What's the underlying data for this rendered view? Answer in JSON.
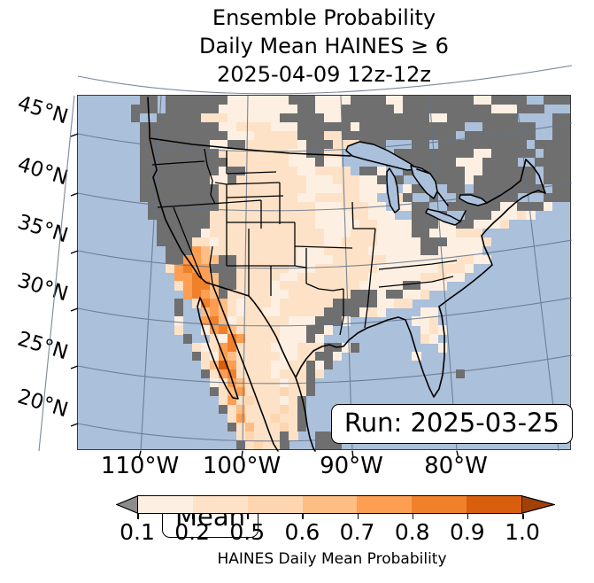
{
  "title": {
    "line1": "Ensemble Probability",
    "line2": "Daily Mean HAINES ≥ 6",
    "line3": "2025-04-09 12z-12z"
  },
  "map": {
    "mean_label": "Mean",
    "run_label": "Run: 2025-03-25",
    "lat_labels": [
      "45°N",
      "40°N",
      "35°N",
      "30°N",
      "25°N",
      "20°N"
    ],
    "lon_labels": [
      "110°W",
      "100°W",
      "90°W",
      "80°W"
    ],
    "ocean_color": "#abc0da",
    "nodata_color": "#6f6f6f",
    "border_color": "#000000"
  },
  "chart_data": {
    "type": "heatmap",
    "subtype": "geographic-probability-map",
    "title": "Ensemble Probability Daily Mean HAINES ≥ 6 2025-04-09 12z-12z",
    "annotations": [
      "Mean",
      "Run: 2025-03-25"
    ],
    "x_axis": {
      "label": "",
      "ticks": [
        "110°W",
        "100°W",
        "90°W",
        "80°W"
      ]
    },
    "y_axis": {
      "label": "",
      "ticks": [
        "45°N",
        "40°N",
        "35°N",
        "30°N",
        "25°N",
        "20°N"
      ]
    },
    "colorbar": {
      "label": "HAINES Daily Mean Probability",
      "tick_labels": [
        "0.1",
        "0.2",
        "0.5",
        "0.6",
        "0.7",
        "0.8",
        "0.9",
        "1.0"
      ],
      "segment_colors": [
        "#fdf0e2",
        "#fde2c7",
        "#fdd6af",
        "#fdbe85",
        "#fd9e53",
        "#f0802a",
        "#d85f0e"
      ],
      "under_color": "#8c8c8c",
      "over_color": "#a04108",
      "outline_color": "#000000"
    },
    "palette": {
      ".": null,
      "g": "#6f6f6f",
      "a": "#fdf0e2",
      "b": "#fde2c7",
      "c": "#fdd6af",
      "d": "#fdbe85",
      "e": "#fd9e53",
      "f": "#f0802a",
      "h": "#d85f0e"
    },
    "palette_meaning": {
      ".": "ocean / no land",
      "g": "no data / below 0.1",
      "a": "0.1-0.2",
      "b": "0.2-0.5",
      "c": "0.5-0.6",
      "d": "0.6-0.7",
      "e": "0.7-0.8",
      "f": "0.8-0.9",
      "h": "0.9-1.0"
    },
    "grid_cols": 56,
    "grid_rows": 40,
    "grid": [
      ".......gg.gggggggaaaaaaagggaaaaggggaaggggggggaagggg..ggg",
      "......ggg.ggggggaaaaaaaaaggaaaggggggaggggggggggaaaggg...g",
      "......g..gggggbbbaaaaaagggggaaggggggggggaagggggggg....gg",
      ".......gggggggggaabbbbaaaggggggagggggggggggg..gggggg..gg",
      ".......ggggggggggaaabbbbbgggbbggggggggggggg.gggggggg..gg",
      ".......ggggggggaaggbbbbbbagggbbbggg...gg.gggggggggg.gggg",
      ".......gggggggggbbbbbbbbaaggbb....g.gggggggggaaggggg.ggg",
      ".......ggggggggggbbbbbbbaaagaa.....ggggggggaaagggg..gggg",
      ".......gggggggggaggbbbbbbaabbbb.gga..gggggggaagggggg.ggg",
      ".......ggggggggaagbbbbbbbbaaabbbaag.g..gggggaggggggg.ggg",
      ".......gggggggggbbbbbbbbbbaaaabbaaa..agg..gg.gggggggg.gg",
      ".......gggggggggbbbbbbbbbaabbbbbaa..bg..g..ggggggg...ggg",
      "........ggggggggbbbbbbbbbbbaaabbbaa.aagg..ggggggaaggga..",
      "........gggggggbbbbbbbbbbbbaaaabbaaa..gggg..gggaaaba....",
      ".........ggggggbbbbbbbbbbbbaaaaabbaaaagggaaggaaab.......",
      ".........gggggabbbbbbbbbbbbbaaabbbaaaaggaaabbb..........",
      ".........ggggbbabbbbbbbbbbbbaabbbbaaaaagggaaaab.........",
      "..........gggedbbbbbbbbbbaaabbbbbaaaaaaggaaaaa..........",
      "..........ggeeddggbbbbbbbaaaabbbbbbaaaaaaaabbaa.........",
      "..........befeegggbbbbbbaaabbbbbbbaaaaaaabbba...........",
      "...........eefedggbbbbbaabbbbbbbbaaaaaabbbaa............",
      "...........beffdggbbbbabbbbbbbbbaaaaaggaaa..............",
      "............efedgbbbbbaabbbbbbbgggaggaab................",
      "...........g.bfedbabbbabbbbbbgggggaabb..................",
      "...........g..dedbabbaabbbbbggggaba....aa...............",
      "...........a..efdabbbbbbaaaggga.......aab...............",
      "...........b..aefdbbbbbaaagga..........aba..............",
      "............g..bafebbbbaaaga...........ba...............",
      ".............babefbbbbaaabbbggag.........a..............",
      ".............gbaedbbbbbaabbgga........a.................",
      "..............bdhebbbbaabbgag...........................",
      "..............gbefbbbbabbbgb...............g............",
      "...............abedbbbbabbg.............................",
      "...............gbdebbbbcbbg.............................",
      "................bebcbbbabg..............................",
      "................gbdbbbbcbg..............................",
      ".................bebbbcbbg.....................gg.......",
      ".................gbdbbbcbg......................ggg.....",
      "..................bcbbbgb..gg....................gg.....",
      "..................gbcbbg...ggg.........................."
    ]
  }
}
